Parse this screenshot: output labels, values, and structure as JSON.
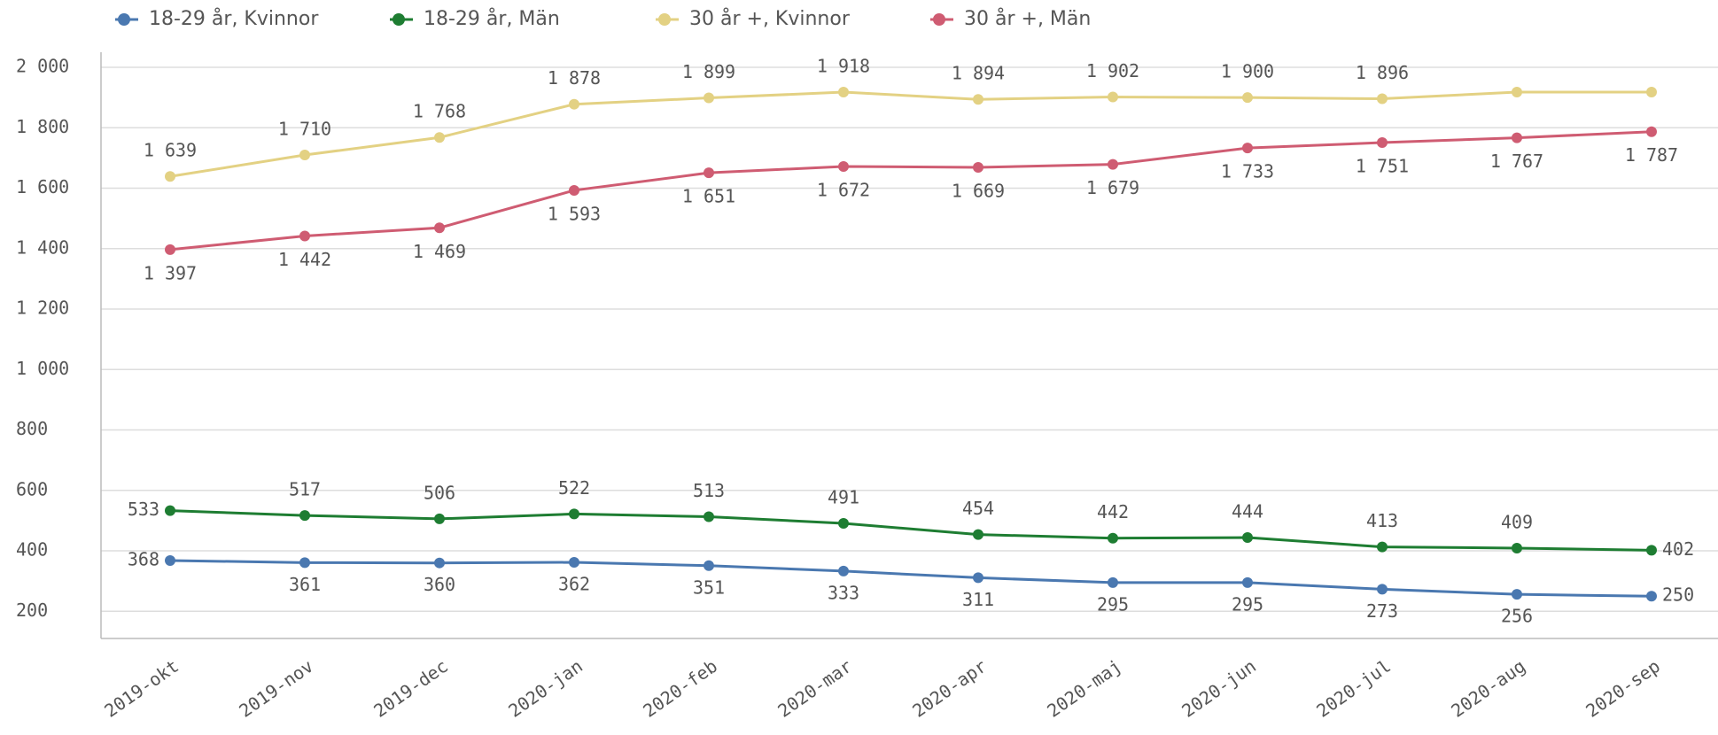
{
  "chart_data": {
    "type": "line",
    "categories": [
      "2019-okt",
      "2019-nov",
      "2019-dec",
      "2020-jan",
      "2020-feb",
      "2020-mar",
      "2020-apr",
      "2020-maj",
      "2020-jun",
      "2020-jul",
      "2020-aug",
      "2020-sep"
    ],
    "series": [
      {
        "name": "18-29 år, Kvinnor",
        "color": "#4a78b0",
        "values": [
          368,
          361,
          360,
          362,
          351,
          333,
          311,
          295,
          295,
          273,
          256,
          250
        ]
      },
      {
        "name": "18-29 år, Män",
        "color": "#1e7d32",
        "values": [
          533,
          517,
          506,
          522,
          513,
          491,
          454,
          442,
          444,
          413,
          409,
          402
        ]
      },
      {
        "name": "30 år +, Kvinnor",
        "color": "#e3d183",
        "values": [
          1639,
          1710,
          1768,
          1878,
          1899,
          1918,
          1894,
          1902,
          1900,
          1896,
          1918,
          1918
        ],
        "value_labels": [
          "1 639",
          "1 710",
          "1 768",
          "1 878",
          "1 899",
          "1 918",
          "1 894",
          "1 902",
          "1 900",
          "1 896",
          null,
          null
        ]
      },
      {
        "name": "30 år +, Män",
        "color": "#cf5c72",
        "values": [
          1397,
          1442,
          1469,
          1593,
          1651,
          1672,
          1669,
          1679,
          1733,
          1751,
          1767,
          1787
        ],
        "value_labels": [
          "1 397",
          "1 442",
          "1 469",
          "1 593",
          "1 651",
          "1 672",
          "1 669",
          "1 679",
          "1 733",
          "1 751",
          "1 767",
          "1 787"
        ]
      }
    ],
    "ylim": [
      110,
      2050
    ],
    "yticks": [
      200,
      400,
      600,
      800,
      {
        "value": 1000,
        "label": "1 000"
      },
      {
        "value": 1200,
        "label": "1 200"
      },
      {
        "value": 1400,
        "label": "1 400"
      },
      {
        "value": 1600,
        "label": "1 600"
      },
      {
        "value": 1800,
        "label": "1 800"
      },
      {
        "value": 2000,
        "label": "2 000"
      }
    ],
    "grid": true
  }
}
